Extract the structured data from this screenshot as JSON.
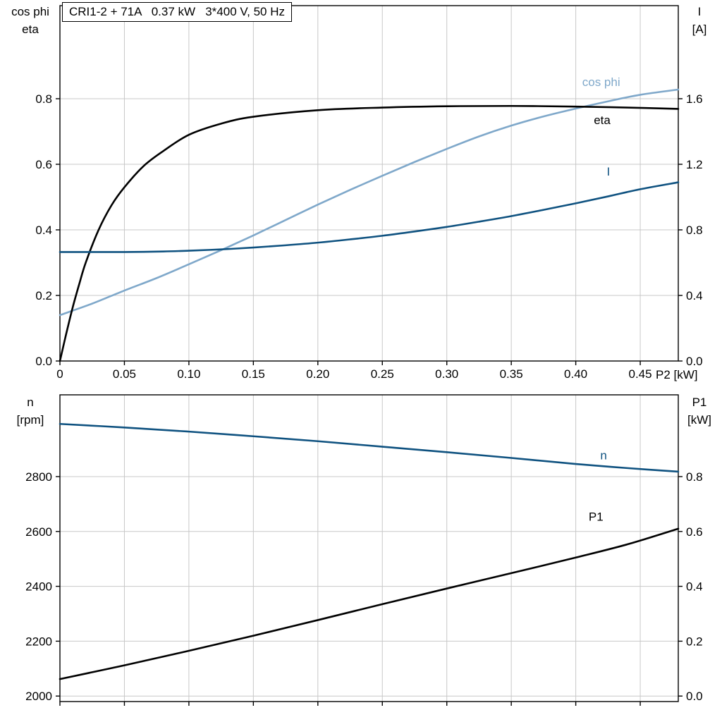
{
  "header": {
    "title_box": "CRI1-2 + 71A   0.37 kW   3*400 V, 50 Hz"
  },
  "axes_titles": {
    "top_left_line1": "cos phi",
    "top_left_line2": "eta",
    "top_right_line1": "I",
    "top_right_line2": "[A]",
    "bottom_left_line1": "n",
    "bottom_left_line2": "[rpm]",
    "bottom_right_line1": "P1",
    "bottom_right_line2": "[kW]",
    "x_axis_label": "P2 [kW]"
  },
  "colors": {
    "light_blue": "#7fa8ca",
    "dark_blue": "#0f5280",
    "black": "#000000",
    "grid": "#c8c8c8"
  },
  "chart_data": [
    {
      "type": "line",
      "title": "CRI1-2 + 71A   0.37 kW   3*400 V, 50 Hz",
      "xlabel": "P2 [kW]",
      "ylabel_left": "cos phi / eta",
      "ylabel_right": "I [A]",
      "xlim": [
        0,
        0.4795
      ],
      "ylim_left": [
        0,
        1.0839
      ],
      "ylim_right": [
        0,
        2.1678
      ],
      "grid": true,
      "xticks": {
        "values": [
          0,
          0.05,
          0.1,
          0.15,
          0.2,
          0.25,
          0.3,
          0.35,
          0.4,
          0.45
        ],
        "labels": [
          "0",
          "0.05",
          "0.10",
          "0.15",
          "0.20",
          "0.25",
          "0.30",
          "0.35",
          "0.40",
          "0.45"
        ]
      },
      "yticks_left": {
        "values": [
          0,
          0.2,
          0.4,
          0.6,
          0.8
        ],
        "labels": [
          "0.0",
          "0.2",
          "0.4",
          "0.6",
          "0.8"
        ]
      },
      "yticks_right": {
        "values": [
          0,
          0.4,
          0.8,
          1.2,
          1.6
        ],
        "labels": [
          "0.0",
          "0.4",
          "0.8",
          "1.2",
          "1.6"
        ]
      },
      "series": [
        {
          "name": "cos phi",
          "axis": "left",
          "color": "#7fa8ca",
          "label_at": [
            0.405,
            0.852
          ],
          "x": [
            0,
            0.025,
            0.05,
            0.075,
            0.1,
            0.125,
            0.15,
            0.175,
            0.2,
            0.225,
            0.25,
            0.275,
            0.3,
            0.325,
            0.35,
            0.375,
            0.4,
            0.425,
            0.45,
            0.4795
          ],
          "y": [
            0.14,
            0.175,
            0.215,
            0.253,
            0.295,
            0.338,
            0.383,
            0.43,
            0.477,
            0.522,
            0.565,
            0.607,
            0.647,
            0.685,
            0.718,
            0.746,
            0.77,
            0.792,
            0.812,
            0.828
          ]
        },
        {
          "name": "eta",
          "axis": "left",
          "color": "#000000",
          "label_at": [
            0.414,
            0.736
          ],
          "x": [
            0,
            0.005,
            0.01,
            0.015,
            0.02,
            0.03,
            0.04,
            0.05,
            0.065,
            0.08,
            0.1,
            0.125,
            0.15,
            0.2,
            0.25,
            0.3,
            0.35,
            0.4,
            0.44,
            0.4795
          ],
          "y": [
            0,
            0.085,
            0.165,
            0.235,
            0.3,
            0.4,
            0.475,
            0.53,
            0.595,
            0.64,
            0.69,
            0.724,
            0.745,
            0.765,
            0.773,
            0.777,
            0.778,
            0.776,
            0.773,
            0.769
          ]
        },
        {
          "name": "I",
          "axis": "right",
          "color": "#0f5280",
          "label_at": [
            0.424,
            1.158
          ],
          "x": [
            0,
            0.05,
            0.08,
            0.1,
            0.125,
            0.15,
            0.175,
            0.2,
            0.225,
            0.25,
            0.275,
            0.3,
            0.325,
            0.35,
            0.375,
            0.4,
            0.425,
            0.45,
            0.4795
          ],
          "y": [
            0.665,
            0.665,
            0.668,
            0.673,
            0.681,
            0.692,
            0.706,
            0.722,
            0.742,
            0.764,
            0.79,
            0.818,
            0.85,
            0.884,
            0.922,
            0.962,
            1.004,
            1.048,
            1.09
          ]
        }
      ]
    },
    {
      "type": "line",
      "title": "",
      "xlabel": "",
      "ylabel_left": "n [rpm]",
      "ylabel_right": "P1 [kW]",
      "xlim": [
        0,
        0.4795
      ],
      "ylim_left": [
        1980,
        3098
      ],
      "ylim_right": [
        -0.02,
        1.098
      ],
      "grid": true,
      "xticks": {
        "values": [
          0,
          0.05,
          0.1,
          0.15,
          0.2,
          0.25,
          0.3,
          0.35,
          0.4,
          0.45
        ],
        "labels": []
      },
      "yticks_left": {
        "values": [
          2000,
          2200,
          2400,
          2600,
          2800
        ],
        "labels": [
          "2000",
          "2200",
          "2400",
          "2600",
          "2800"
        ]
      },
      "yticks_right": {
        "values": [
          0,
          0.2,
          0.4,
          0.6,
          0.8
        ],
        "labels": [
          "0.0",
          "0.2",
          "0.4",
          "0.6",
          "0.8"
        ]
      },
      "series": [
        {
          "name": "n",
          "axis": "left",
          "color": "#0f5280",
          "label_at": [
            0.419,
            2878
          ],
          "x": [
            0,
            0.05,
            0.1,
            0.15,
            0.2,
            0.25,
            0.3,
            0.35,
            0.4,
            0.44,
            0.4795
          ],
          "y": [
            2992,
            2979,
            2964,
            2947,
            2929,
            2909,
            2889,
            2868,
            2846,
            2831,
            2818
          ]
        },
        {
          "name": "P1",
          "axis": "right",
          "color": "#000000",
          "label_at": [
            0.41,
            0.655
          ],
          "x": [
            0,
            0.05,
            0.1,
            0.15,
            0.2,
            0.25,
            0.3,
            0.35,
            0.4,
            0.44,
            0.4795
          ],
          "y": [
            0.062,
            0.112,
            0.165,
            0.22,
            0.277,
            0.335,
            0.392,
            0.448,
            0.505,
            0.553,
            0.61
          ]
        }
      ]
    }
  ]
}
